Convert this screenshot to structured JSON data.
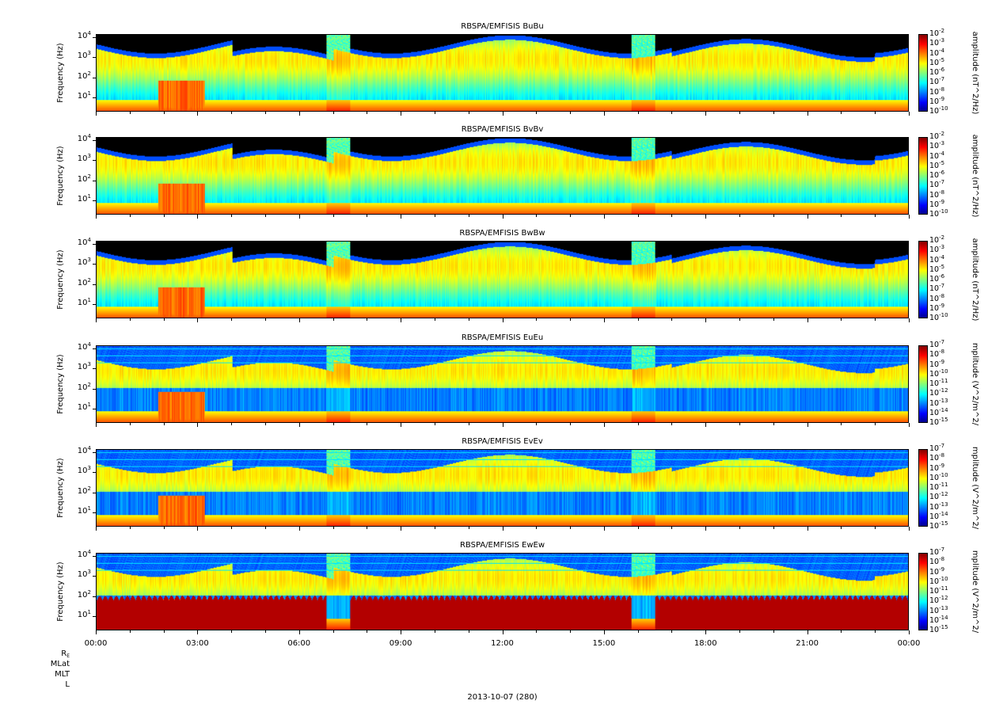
{
  "chart_data": [
    {
      "type": "heatmap",
      "title": "RBSPA/EMFISIS  BuBu",
      "ylabel": "Frequency (Hz)",
      "colorbar_label": "amplitude (nT^2/Hz)",
      "colorbar_ticks": [
        "10",
        "10",
        "10",
        "10",
        "10",
        "10",
        "10",
        "10",
        "10"
      ],
      "colorbar_exponents": [
        "-2",
        "-3",
        "-4",
        "-5",
        "-6",
        "-7",
        "-8",
        "-9",
        "-10"
      ],
      "yscale": "log",
      "ylim": [
        2,
        14000
      ],
      "zlim": [
        "1e-10",
        "1e-2"
      ]
    },
    {
      "type": "heatmap",
      "title": "RBSPA/EMFISIS  BvBv",
      "ylabel": "Frequency (Hz)",
      "colorbar_label": "amplitude (nT^2/Hz)",
      "colorbar_ticks": [
        "10",
        "10",
        "10",
        "10",
        "10",
        "10",
        "10",
        "10",
        "10"
      ],
      "colorbar_exponents": [
        "-2",
        "-3",
        "-4",
        "-5",
        "-6",
        "-7",
        "-8",
        "-9",
        "-10"
      ],
      "yscale": "log",
      "ylim": [
        2,
        14000
      ],
      "zlim": [
        "1e-10",
        "1e-2"
      ]
    },
    {
      "type": "heatmap",
      "title": "RBSPA/EMFISIS  BwBw",
      "ylabel": "Frequency (Hz)",
      "colorbar_label": "amplitude (nT^2/Hz)",
      "colorbar_ticks": [
        "10",
        "10",
        "10",
        "10",
        "10",
        "10",
        "10",
        "10",
        "10"
      ],
      "colorbar_exponents": [
        "-2",
        "-3",
        "-4",
        "-5",
        "-6",
        "-7",
        "-8",
        "-9",
        "-10"
      ],
      "yscale": "log",
      "ylim": [
        2,
        14000
      ],
      "zlim": [
        "1e-10",
        "1e-2"
      ]
    },
    {
      "type": "heatmap",
      "title": "RBSPA/EMFISIS  EuEu",
      "ylabel": "Frequency (Hz)",
      "colorbar_label": "mplitude (V^2/m^2/",
      "colorbar_ticks": [
        "10",
        "10",
        "10",
        "10",
        "10",
        "10",
        "10",
        "10",
        "10"
      ],
      "colorbar_exponents": [
        "-7",
        "-8",
        "-9",
        "-10",
        "-11",
        "-12",
        "-13",
        "-14",
        "-15"
      ],
      "yscale": "log",
      "ylim": [
        2,
        14000
      ],
      "zlim": [
        "1e-15",
        "1e-7"
      ]
    },
    {
      "type": "heatmap",
      "title": "RBSPA/EMFISIS  EvEv",
      "ylabel": "Frequency (Hz)",
      "colorbar_label": "mplitude (V^2/m^2/",
      "colorbar_ticks": [
        "10",
        "10",
        "10",
        "10",
        "10",
        "10",
        "10",
        "10",
        "10"
      ],
      "colorbar_exponents": [
        "-7",
        "-8",
        "-9",
        "-10",
        "-11",
        "-12",
        "-13",
        "-14",
        "-15"
      ],
      "yscale": "log",
      "ylim": [
        2,
        14000
      ],
      "zlim": [
        "1e-15",
        "1e-7"
      ]
    },
    {
      "type": "heatmap",
      "title": "RBSPA/EMFISIS  EwEw",
      "ylabel": "Frequency (Hz)",
      "colorbar_label": "mplitude (V^2/m^2/",
      "colorbar_ticks": [
        "10",
        "10",
        "10",
        "10",
        "10",
        "10",
        "10",
        "10",
        "10"
      ],
      "colorbar_exponents": [
        "-7",
        "-8",
        "-9",
        "-10",
        "-11",
        "-12",
        "-13",
        "-14",
        "-15"
      ],
      "yscale": "log",
      "ylim": [
        2,
        14000
      ],
      "zlim": [
        "1e-15",
        "1e-7"
      ]
    }
  ],
  "y_ticks": {
    "bases": [
      "10",
      "10",
      "10",
      "10"
    ],
    "exponents": [
      "4",
      "3",
      "2",
      "1"
    ]
  },
  "x_axis": {
    "ticks": [
      "00:00",
      "03:00",
      "06:00",
      "09:00",
      "12:00",
      "15:00",
      "18:00",
      "21:00",
      "00:00"
    ],
    "date_label": "2013-10-07 (280)"
  },
  "ephemeris_labels": {
    "re": "R",
    "re_sub": "E",
    "mlat": "MLat",
    "mlt": "MLT",
    "l": "L"
  }
}
